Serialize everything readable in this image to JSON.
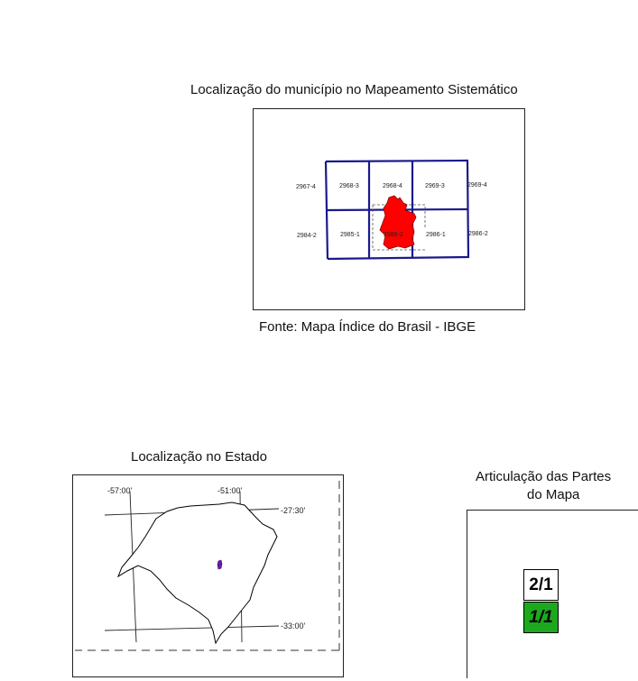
{
  "top_panel": {
    "title": "Localização do município no Mapeamento Sistemático",
    "source": "Fonte: Mapa Índice do Brasil - IBGE",
    "grid_row1": [
      "2967-4",
      "2968-3",
      "2968-4",
      "2969-3",
      "2969-4"
    ],
    "grid_row2": [
      "2984-2",
      "2985-1",
      "2985-2",
      "2986-1",
      "2986-2"
    ],
    "grid_color": "#1a1a8c",
    "municipality_color": "#ff0000"
  },
  "state_panel": {
    "title": "Localização no Estado",
    "lon_labels": [
      "-57:00'",
      "-51:00'"
    ],
    "lat_labels": [
      "-27:30'",
      "-33:00'"
    ],
    "marker_color": "#6a1aa8"
  },
  "parts_panel": {
    "title_line1": "Articulação das Partes",
    "title_line2": "do Mapa",
    "parts": [
      {
        "label": "2/1",
        "fill": "#ffffff"
      },
      {
        "label": "1/1",
        "fill": "#1ea81e"
      }
    ]
  }
}
